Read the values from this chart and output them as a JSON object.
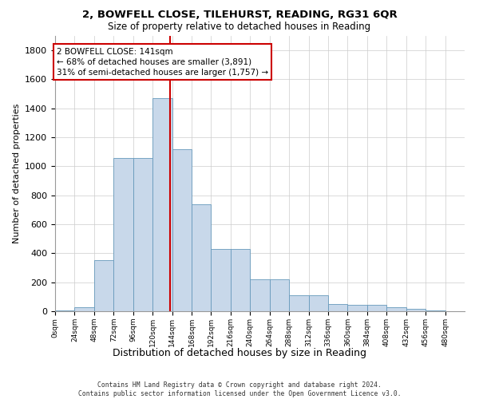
{
  "title1": "2, BOWFELL CLOSE, TILEHURST, READING, RG31 6QR",
  "title2": "Size of property relative to detached houses in Reading",
  "xlabel": "Distribution of detached houses by size in Reading",
  "ylabel": "Number of detached properties",
  "bar_values": [
    5,
    30,
    355,
    1060,
    1060,
    1470,
    1120,
    740,
    430,
    430,
    220,
    220,
    110,
    110,
    50,
    45,
    45,
    25,
    15,
    5,
    0
  ],
  "bin_width": 24,
  "bar_color": "#c8d8ea",
  "bar_edge_color": "#6699bb",
  "property_size": 141,
  "vline_color": "#cc0000",
  "annotation_text": "2 BOWFELL CLOSE: 141sqm\n← 68% of detached houses are smaller (3,891)\n31% of semi-detached houses are larger (1,757) →",
  "annotation_box_color": "#ffffff",
  "annotation_box_edge": "#cc0000",
  "ylim": [
    0,
    1900
  ],
  "yticks": [
    0,
    200,
    400,
    600,
    800,
    1000,
    1200,
    1400,
    1600,
    1800
  ],
  "xtick_labels": [
    "0sqm",
    "24sqm",
    "48sqm",
    "72sqm",
    "96sqm",
    "120sqm",
    "144sqm",
    "168sqm",
    "192sqm",
    "216sqm",
    "240sqm",
    "264sqm",
    "288sqm",
    "312sqm",
    "336sqm",
    "360sqm",
    "384sqm",
    "408sqm",
    "432sqm",
    "456sqm",
    "480sqm"
  ],
  "footer_text": "Contains HM Land Registry data © Crown copyright and database right 2024.\nContains public sector information licensed under the Open Government Licence v3.0.",
  "background_color": "#ffffff",
  "grid_color": "#cccccc",
  "num_bins": 21
}
